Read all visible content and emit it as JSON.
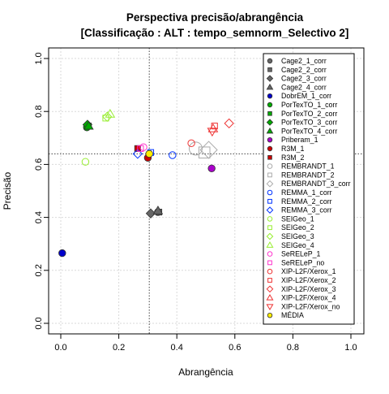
{
  "chart_data": {
    "type": "scatter",
    "title": "Perspectiva precisão/abrangência",
    "subtitle": "[Classificação : ALT : tempo_semnorm_Selectivo 2]",
    "xlabel": "Abrangência",
    "ylabel": "Precisão",
    "xlim": [
      0,
      1
    ],
    "ylim": [
      0,
      1
    ],
    "xticks": [
      0.0,
      0.2,
      0.4,
      0.6,
      0.8,
      1.0
    ],
    "yticks": [
      0.0,
      0.2,
      0.4,
      0.6,
      0.8,
      1.0
    ],
    "xtick_labels": [
      "0.0",
      "0.2",
      "0.4",
      "0.6",
      "0.8",
      "1.0"
    ],
    "ytick_labels": [
      "0.0",
      "0.2",
      "0.4",
      "0.6",
      "0.8",
      "1.0"
    ],
    "grid": true,
    "legend_position": "right",
    "reference_lines": {
      "vertical_x": 0.305,
      "horizontal_y": 0.64
    },
    "series": [
      {
        "name": "Cage2_1_corr",
        "color": "#666666",
        "shape": "circle",
        "filled": true,
        "x": 0.335,
        "y": 0.42
      },
      {
        "name": "Cage2_2_corr",
        "color": "#666666",
        "shape": "square",
        "filled": true,
        "x": 0.338,
        "y": 0.42
      },
      {
        "name": "Cage2_3_corr",
        "color": "#666666",
        "shape": "diamond",
        "filled": true,
        "x": 0.31,
        "y": 0.415
      },
      {
        "name": "Cage2_4_corr",
        "color": "#666666",
        "shape": "triangle",
        "filled": true,
        "x": 0.335,
        "y": 0.425
      },
      {
        "name": "DobrEM_1_corr",
        "color": "#0000cc",
        "shape": "circle",
        "filled": true,
        "x": 0.005,
        "y": 0.265
      },
      {
        "name": "PorTexTO_1_corr",
        "color": "#00aa00",
        "shape": "circle",
        "filled": true,
        "x": 0.09,
        "y": 0.74
      },
      {
        "name": "PorTexTO_2_corr",
        "color": "#00aa00",
        "shape": "square",
        "filled": true,
        "x": 0.095,
        "y": 0.745
      },
      {
        "name": "PorTexTO_3_corr",
        "color": "#00aa00",
        "shape": "diamond",
        "filled": true,
        "x": 0.092,
        "y": 0.75
      },
      {
        "name": "PorTexTO_4_corr",
        "color": "#00aa00",
        "shape": "triangle",
        "filled": true,
        "x": 0.096,
        "y": 0.745
      },
      {
        "name": "Priberam_1",
        "color": "#aa00cc",
        "shape": "circle",
        "filled": true,
        "x": 0.52,
        "y": 0.585
      },
      {
        "name": "R3M_1",
        "color": "#cc0000",
        "shape": "circle",
        "filled": true,
        "x": 0.3,
        "y": 0.625
      },
      {
        "name": "R3M_2",
        "color": "#cc0000",
        "shape": "square",
        "filled": true,
        "x": 0.265,
        "y": 0.66
      },
      {
        "name": "REMBRANDT_1",
        "color": "#aaaaaa",
        "shape": "circle",
        "filled": false,
        "x": 0.465,
        "y": 0.66
      },
      {
        "name": "REMBRANDT_2",
        "color": "#aaaaaa",
        "shape": "square",
        "filled": false,
        "x": 0.495,
        "y": 0.645
      },
      {
        "name": "REMBRANDT_3_corr",
        "color": "#aaaaaa",
        "shape": "diamond",
        "filled": false,
        "x": 0.51,
        "y": 0.655
      },
      {
        "name": "REMMA_1_corr",
        "color": "#0033ff",
        "shape": "circle",
        "filled": false,
        "x": 0.385,
        "y": 0.635
      },
      {
        "name": "REMMA_2_corr",
        "color": "#0033ff",
        "shape": "square",
        "filled": false,
        "x": 0.31,
        "y": 0.645
      },
      {
        "name": "REMMA_3_corr",
        "color": "#0033ff",
        "shape": "diamond",
        "filled": false,
        "x": 0.265,
        "y": 0.64
      },
      {
        "name": "SEIGeo_1",
        "color": "#99ee33",
        "shape": "circle",
        "filled": false,
        "x": 0.085,
        "y": 0.61
      },
      {
        "name": "SEIGeo_2",
        "color": "#99ee33",
        "shape": "square",
        "filled": false,
        "x": 0.155,
        "y": 0.775
      },
      {
        "name": "SEIGeo_3",
        "color": "#99ee33",
        "shape": "diamond",
        "filled": false,
        "x": 0.16,
        "y": 0.78
      },
      {
        "name": "SEIGeo_4",
        "color": "#99ee33",
        "shape": "triangle",
        "filled": false,
        "x": 0.17,
        "y": 0.79
      },
      {
        "name": "SeRELeP_1",
        "color": "#ff33cc",
        "shape": "circle",
        "filled": false,
        "x": 0.285,
        "y": 0.665
      },
      {
        "name": "SeRELeP_no",
        "color": "#ff33cc",
        "shape": "square",
        "filled": false,
        "x": 0.275,
        "y": 0.66
      },
      {
        "name": "XIP-L2F/Xerox_1",
        "color": "#ee3333",
        "shape": "circle",
        "filled": false,
        "x": 0.45,
        "y": 0.68
      },
      {
        "name": "XIP-L2F/Xerox_2",
        "color": "#ee3333",
        "shape": "square",
        "filled": false,
        "x": 0.53,
        "y": 0.745
      },
      {
        "name": "XIP-L2F/Xerox_3",
        "color": "#ee3333",
        "shape": "diamond",
        "filled": false,
        "x": 0.58,
        "y": 0.755
      },
      {
        "name": "XIP-L2F/Xerox_4",
        "color": "#ee3333",
        "shape": "triangle",
        "filled": false,
        "x": 0.525,
        "y": 0.735
      },
      {
        "name": "XIP-L2F/Xerox_no",
        "color": "#ee3333",
        "shape": "triangle-down",
        "filled": false,
        "x": 0.522,
        "y": 0.725
      },
      {
        "name": "MÉDIA",
        "color": "#ffee00",
        "shape": "circle",
        "filled": true,
        "x": 0.305,
        "y": 0.64
      }
    ]
  }
}
